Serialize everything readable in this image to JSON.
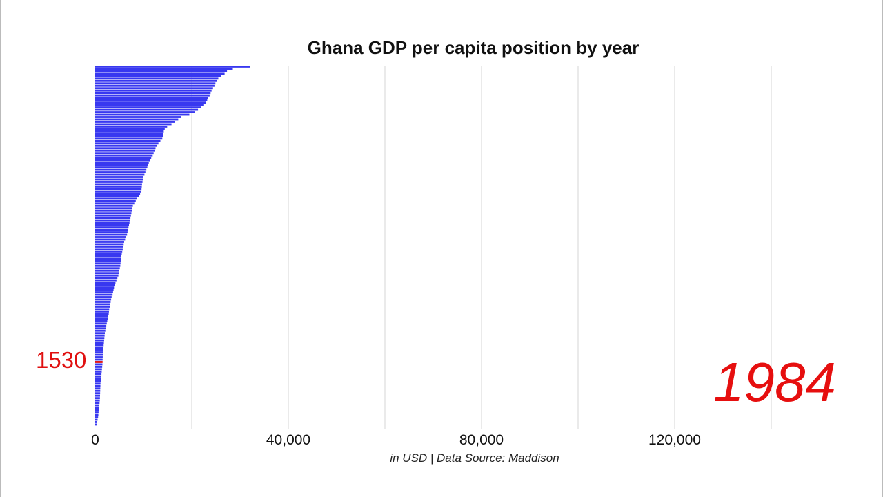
{
  "chart_data": {
    "type": "bar",
    "orientation": "horizontal",
    "title": "Ghana GDP per capita position by year",
    "caption": "in USD | Data Source: Maddison",
    "year": "1984",
    "highlight": {
      "label": "1530",
      "value": 1530,
      "rank_index": 123,
      "color": "#e01010"
    },
    "bar_color": "#3838f0",
    "xlim": [
      0,
      150000
    ],
    "x_ticks": [
      {
        "value": 0,
        "label": "0"
      },
      {
        "value": 40000,
        "label": "40,000"
      },
      {
        "value": 80000,
        "label": "80,000"
      },
      {
        "value": 120000,
        "label": "120,000"
      }
    ],
    "grid": true,
    "grid_step": 20000,
    "values": [
      32100,
      28500,
      27300,
      26800,
      26000,
      25500,
      25200,
      24900,
      24700,
      24400,
      24100,
      23900,
      23700,
      23400,
      23200,
      22900,
      22400,
      22000,
      21300,
      20700,
      19500,
      17800,
      17200,
      16500,
      15800,
      14900,
      14400,
      14200,
      14100,
      14000,
      13900,
      13500,
      13100,
      12800,
      12500,
      12300,
      12100,
      11900,
      11600,
      11300,
      11100,
      11000,
      10800,
      10600,
      10400,
      10200,
      10000,
      9900,
      9800,
      9700,
      9650,
      9600,
      9500,
      9300,
      9000,
      8700,
      8400,
      8100,
      7800,
      7700,
      7600,
      7500,
      7400,
      7300,
      7200,
      7100,
      7000,
      6900,
      6800,
      6700,
      6600,
      6400,
      6200,
      6000,
      5900,
      5800,
      5700,
      5600,
      5500,
      5400,
      5350,
      5300,
      5250,
      5200,
      5100,
      5000,
      4900,
      4800,
      4600,
      4400,
      4200,
      4000,
      3900,
      3800,
      3700,
      3600,
      3400,
      3300,
      3200,
      3100,
      3000,
      2900,
      2850,
      2800,
      2700,
      2600,
      2500,
      2400,
      2300,
      2200,
      2100,
      2000,
      1950,
      1900,
      1850,
      1800,
      1750,
      1700,
      1650,
      1600,
      1580,
      1560,
      1540,
      1530,
      1500,
      1450,
      1400,
      1350,
      1300,
      1250,
      1200,
      1150,
      1100,
      1080,
      1060,
      1040,
      1020,
      1000,
      980,
      950,
      900,
      850,
      800,
      750,
      700,
      650,
      600,
      500,
      400,
      300
    ]
  }
}
